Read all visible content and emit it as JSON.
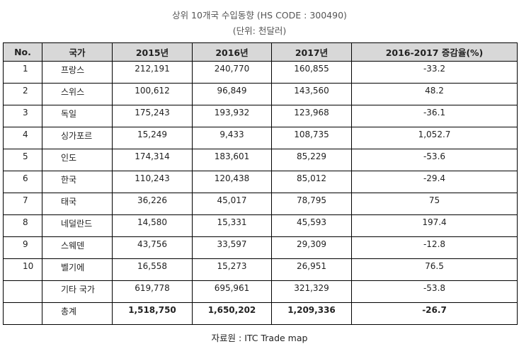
{
  "title": "상위 10개국 수입동향 (HS CODE : 300490)",
  "unit": "(단위: 천달러)",
  "headers": [
    "No.",
    "국가",
    "2015년",
    "2016년",
    "2017년",
    "2016-2017 증감율(%)"
  ],
  "rows": [
    {
      "no": "1",
      "country": "프랑스",
      "y2015": "212,191",
      "y2016": "240,770",
      "y2017": "160,855",
      "change": "-33.2"
    },
    {
      "no": "2",
      "country": "스위스",
      "y2015": "100,612",
      "y2016": "96,849",
      "y2017": "143,560",
      "change": "48.2"
    },
    {
      "no": "3",
      "country": "독일",
      "y2015": "175,243",
      "y2016": "193,932",
      "y2017": "123,968",
      "change": "-36.1"
    },
    {
      "no": "4",
      "country": "싱가포르",
      "y2015": "15,249",
      "y2016": "9,433",
      "y2017": "108,735",
      "change": "1,052.7"
    },
    {
      "no": "5",
      "country": "인도",
      "y2015": "174,314",
      "y2016": "183,601",
      "y2017": "85,229",
      "change": "-53.6"
    },
    {
      "no": "6",
      "country": "한국",
      "y2015": "110,243",
      "y2016": "120,438",
      "y2017": "85,012",
      "change": "-29.4"
    },
    {
      "no": "7",
      "country": "태국",
      "y2015": "36,226",
      "y2016": "45,017",
      "y2017": "78,795",
      "change": "75"
    },
    {
      "no": "8",
      "country": "네덜란드",
      "y2015": "14,580",
      "y2016": "15,331",
      "y2017": "45,593",
      "change": "197.4"
    },
    {
      "no": "9",
      "country": "스웨덴",
      "y2015": "43,756",
      "y2016": "33,597",
      "y2017": "29,309",
      "change": "-12.8"
    },
    {
      "no": "10",
      "country": "벨기에",
      "y2015": "16,558",
      "y2016": "15,273",
      "y2017": "26,951",
      "change": "76.5"
    },
    {
      "no": "",
      "country": "기타 국가",
      "y2015": "619,778",
      "y2016": "695,961",
      "y2017": "321,329",
      "change": "-53.8"
    }
  ],
  "total": {
    "no": "",
    "country": "총계",
    "y2015": "1,518,750",
    "y2016": "1,650,202",
    "y2017": "1,209,336",
    "change": "-26.7"
  },
  "source": "자료원 : ITC Trade map"
}
